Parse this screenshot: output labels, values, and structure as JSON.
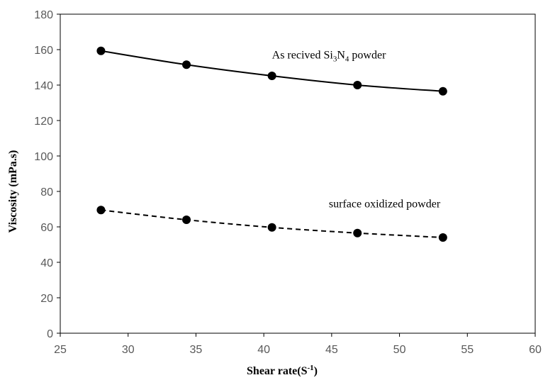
{
  "chart_data": {
    "type": "line",
    "xlabel": "Shear rate(S",
    "xlabel_sup": "-1",
    "xlabel_close": ")",
    "ylabel": "Viscosity (mPa.s)",
    "xlim": [
      25,
      60
    ],
    "ylim": [
      0,
      180
    ],
    "xticks": [
      25,
      30,
      35,
      40,
      45,
      50,
      55,
      60
    ],
    "yticks": [
      0,
      20,
      40,
      60,
      80,
      100,
      120,
      140,
      160,
      180
    ],
    "grid": false,
    "legend": "none",
    "series": [
      {
        "x": [
          28.0,
          34.3,
          40.6,
          46.9,
          53.2
        ],
        "y": [
          159.3,
          151.5,
          145.2,
          140.0,
          136.5
        ],
        "line_style": "solid",
        "color": "#000000"
      },
      {
        "x": [
          28.0,
          34.3,
          40.6,
          46.9,
          53.2
        ],
        "y": [
          69.5,
          64.0,
          59.7,
          56.5,
          54.0
        ],
        "line_style": "dashed",
        "color": "#000000"
      }
    ],
    "annotations": [
      {
        "parts": [
          "As recived Si",
          "3",
          "N",
          "4",
          " powder"
        ],
        "anchor_x": 44.8,
        "anchor_y": 155
      },
      {
        "parts": [
          "surface oxidized powder"
        ],
        "anchor_x": 48.9,
        "anchor_y": 71
      }
    ]
  }
}
